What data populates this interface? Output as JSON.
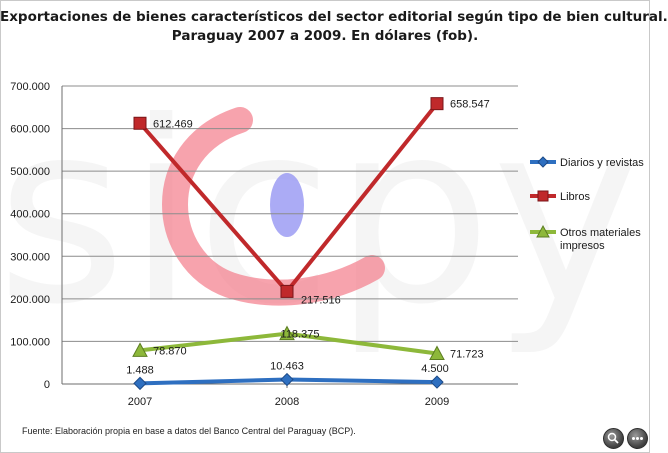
{
  "title_lines": [
    "Exportaciones  de bienes característicos  del sector editorial según tipo de bien cultural.",
    "Paraguay  2007 a 2009. En dólares (fob)."
  ],
  "source": "Fuente:  Elaboración propia en base a datos del Banco Central del Paraguay (BCP).",
  "watermark_text": "sicpy",
  "colors": {
    "diarios": "#2e6fc0",
    "libros": "#c0292b",
    "otros": "#8db83a",
    "grid": "#8c8c8c"
  },
  "chart_data": {
    "type": "line",
    "title": "Exportaciones  de bienes característicos  del sector editorial según tipo de bien cultural. Paraguay  2007 a 2009. En dólares (fob).",
    "xlabel": "",
    "ylabel": "",
    "categories": [
      "2007",
      "2008",
      "2009"
    ],
    "ylim": [
      0,
      700000
    ],
    "yticks": [
      0,
      100000,
      200000,
      300000,
      400000,
      500000,
      600000,
      700000
    ],
    "ytick_labels": [
      "0",
      "100.000",
      "200.000",
      "300.000",
      "400.000",
      "500.000",
      "600.000",
      "700.000"
    ],
    "grid": true,
    "legend_position": "right",
    "series": [
      {
        "name": "Diarios y revistas",
        "values": [
          1488,
          10463,
          4500
        ],
        "labels": [
          "1.488",
          "10.463",
          "4.500"
        ],
        "marker": "diamond",
        "color": "#2e6fc0"
      },
      {
        "name": "Libros",
        "values": [
          612469,
          217516,
          658547
        ],
        "labels": [
          "612.469",
          "217.516",
          "658.547"
        ],
        "marker": "square",
        "color": "#c0292b"
      },
      {
        "name": "Otros materiales impresos",
        "legend_lines": [
          "Otros materiales",
          "impresos"
        ],
        "values": [
          78870,
          118375,
          71723
        ],
        "labels": [
          "78.870",
          "118.375",
          "71.723"
        ],
        "marker": "triangle",
        "color": "#8db83a"
      }
    ]
  }
}
